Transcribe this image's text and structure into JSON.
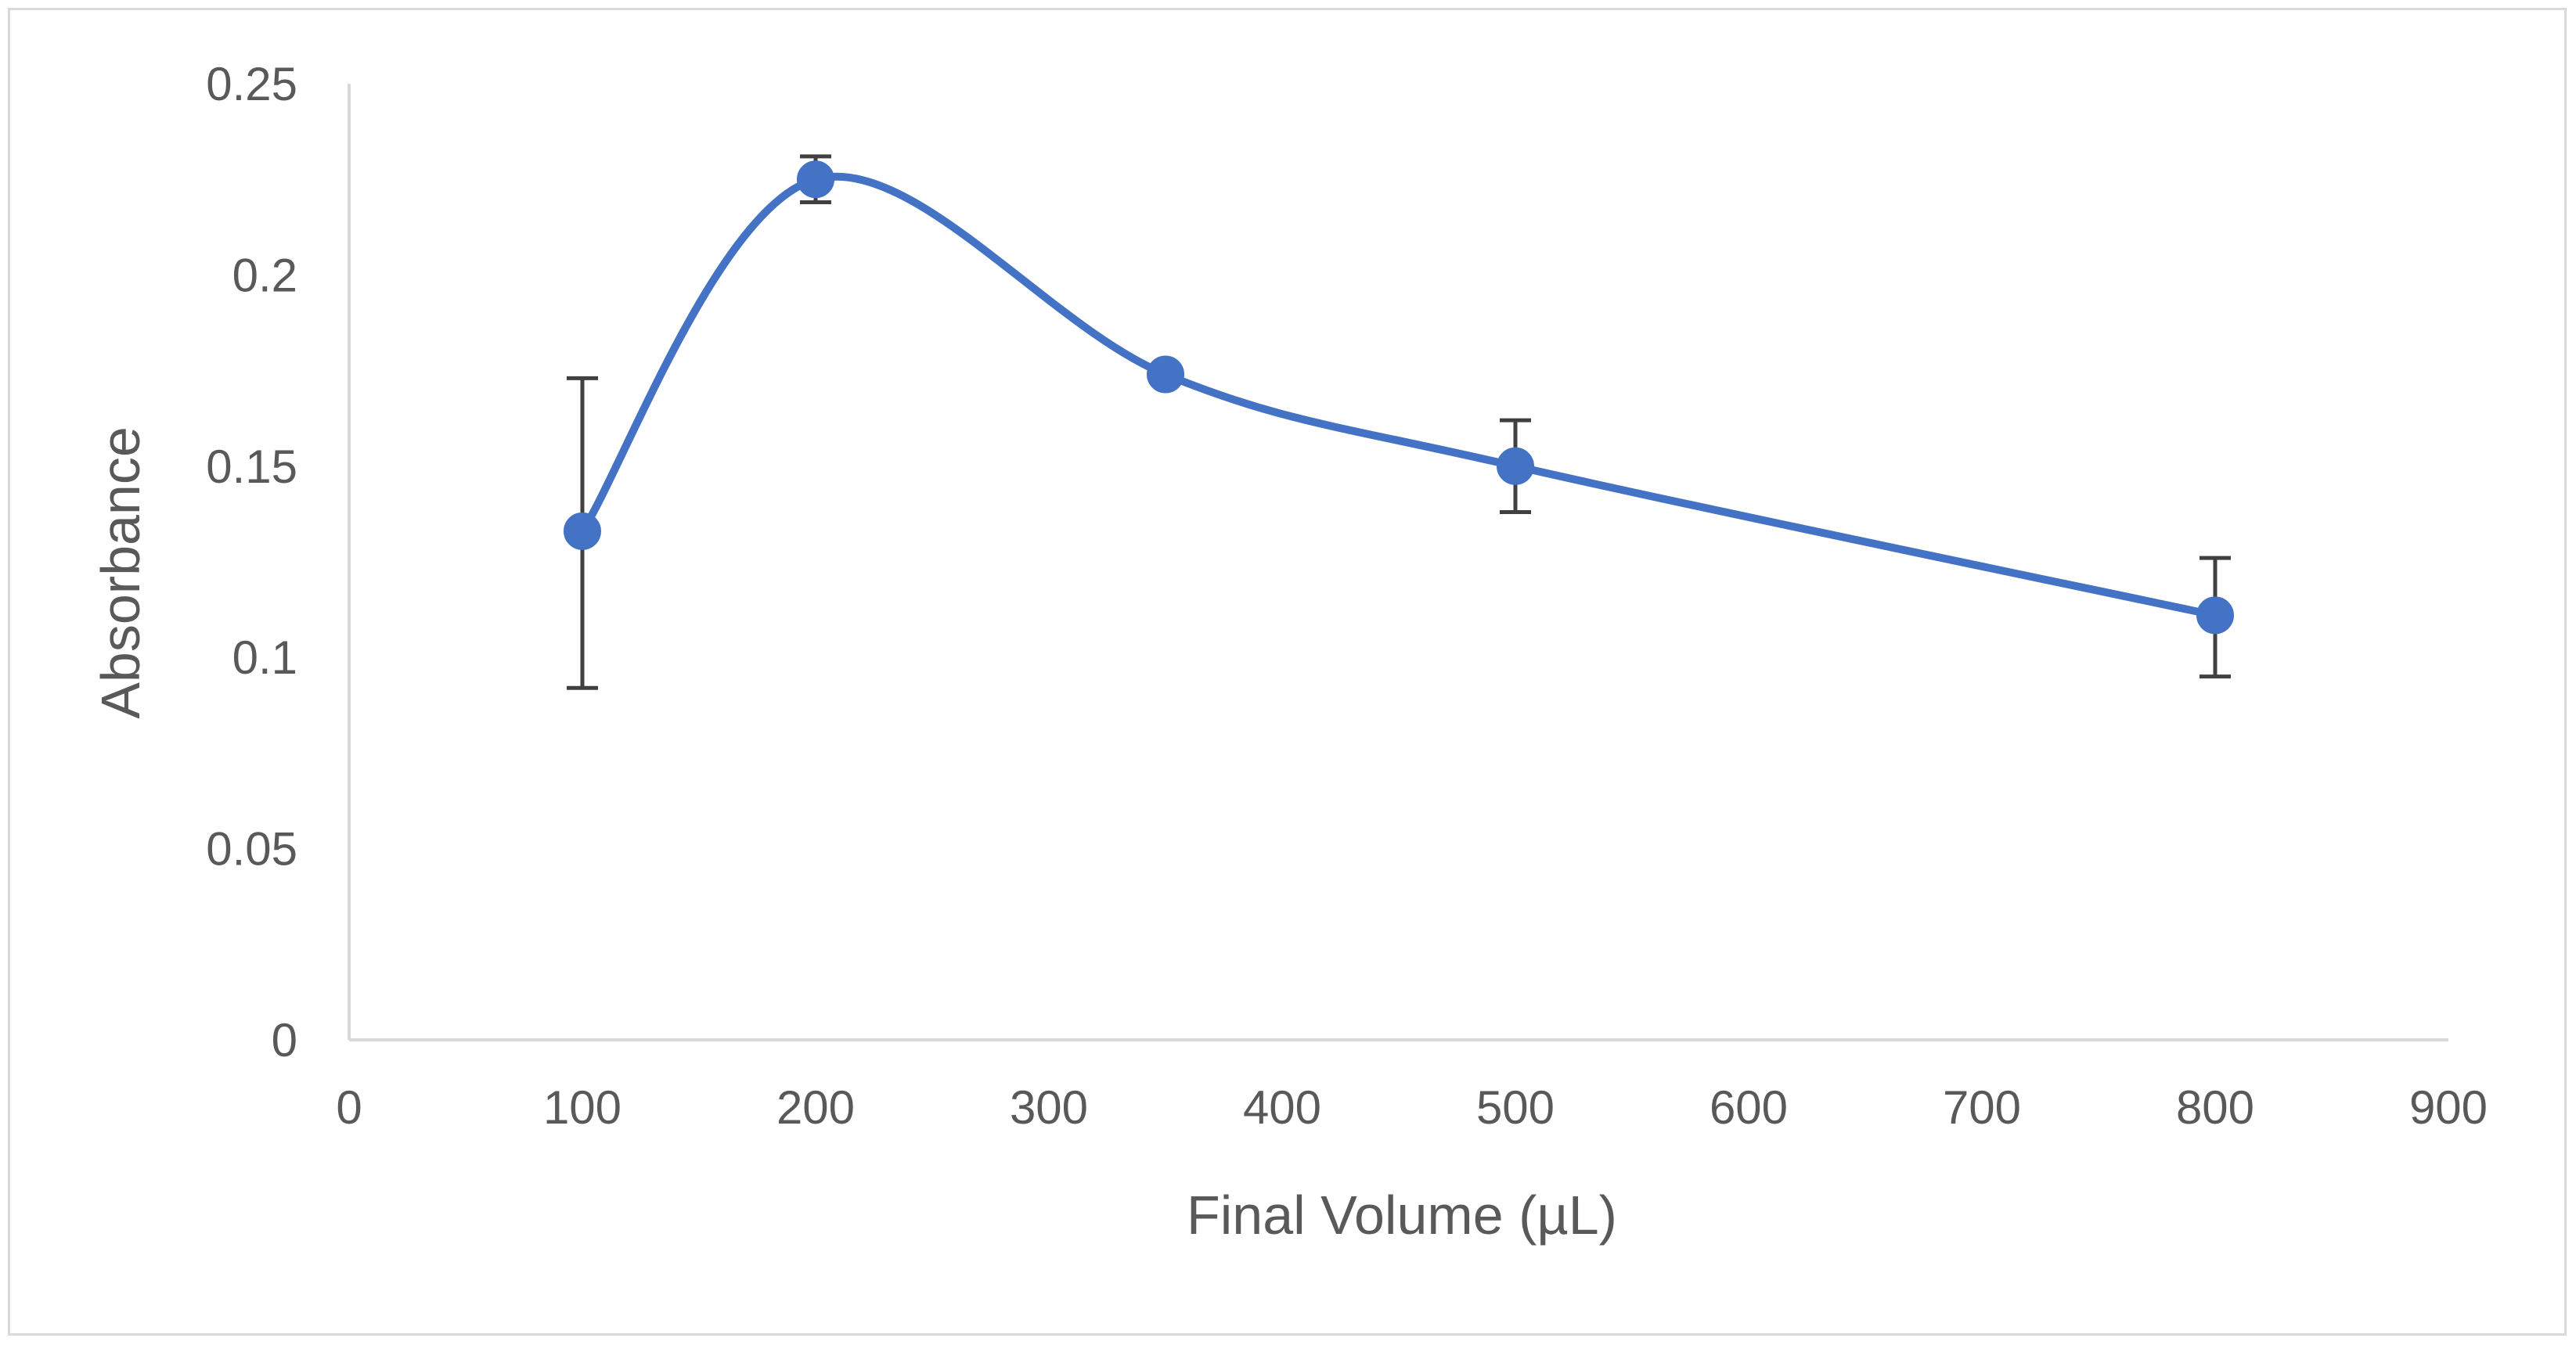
{
  "chart_data": {
    "type": "scatter",
    "title": "",
    "xlabel": "Final Volume (µL)",
    "ylabel": "Absorbance",
    "xlim": [
      0,
      900
    ],
    "ylim": [
      0,
      0.25
    ],
    "x_ticks": [
      0,
      100,
      200,
      300,
      400,
      500,
      600,
      700,
      800,
      900
    ],
    "y_ticks": [
      0,
      0.05,
      0.1,
      0.15,
      0.2,
      0.25
    ],
    "y_tick_labels": [
      "0",
      "0.05",
      "0.1",
      "0.15",
      "0.2",
      "0.25"
    ],
    "grid": false,
    "smoothed_line": true,
    "series": [
      {
        "color": "#4472c4",
        "error_bar_color": "#404040",
        "points": [
          {
            "x": 100,
            "y": 0.133,
            "err_low": 0.092,
            "err_high": 0.173
          },
          {
            "x": 200,
            "y": 0.225,
            "err_low": 0.219,
            "err_high": 0.231
          },
          {
            "x": 350,
            "y": 0.174,
            "err_low": 0.173,
            "err_high": 0.175
          },
          {
            "x": 500,
            "y": 0.15,
            "err_low": 0.138,
            "err_high": 0.162
          },
          {
            "x": 800,
            "y": 0.111,
            "err_low": 0.095,
            "err_high": 0.126
          }
        ]
      }
    ]
  }
}
